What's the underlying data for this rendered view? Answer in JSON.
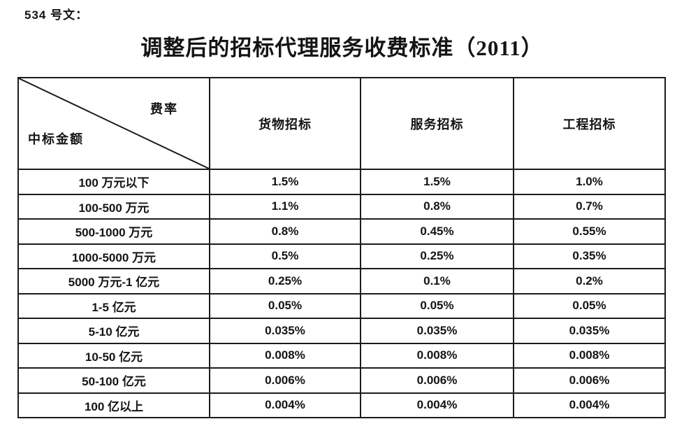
{
  "doc": {
    "ref_label": "534 号文：",
    "title": "调整后的招标代理服务收费标准（2011）"
  },
  "table": {
    "corner": {
      "top_right": "费率",
      "bottom_left": "中标金额"
    },
    "columns": [
      "货物招标",
      "服务招标",
      "工程招标"
    ],
    "rows": [
      {
        "label": "100 万元以下",
        "values": [
          "1.5%",
          "1.5%",
          "1.0%"
        ]
      },
      {
        "label": "100-500 万元",
        "values": [
          "1.1%",
          "0.8%",
          "0.7%"
        ]
      },
      {
        "label": "500-1000 万元",
        "values": [
          "0.8%",
          "0.45%",
          "0.55%"
        ]
      },
      {
        "label": "1000-5000 万元",
        "values": [
          "0.5%",
          "0.25%",
          "0.35%"
        ]
      },
      {
        "label": "5000 万元-1 亿元",
        "values": [
          "0.25%",
          "0.1%",
          "0.2%"
        ]
      },
      {
        "label": "1-5 亿元",
        "values": [
          "0.05%",
          "0.05%",
          "0.05%"
        ]
      },
      {
        "label": "5-10 亿元",
        "values": [
          "0.035%",
          "0.035%",
          "0.035%"
        ]
      },
      {
        "label": "10-50 亿元",
        "values": [
          "0.008%",
          "0.008%",
          "0.008%"
        ]
      },
      {
        "label": "50-100 亿元",
        "values": [
          "0.006%",
          "0.006%",
          "0.006%"
        ]
      },
      {
        "label": "100 亿以上",
        "values": [
          "0.004%",
          "0.004%",
          "0.004%"
        ]
      }
    ]
  },
  "colors": {
    "text": "#141414",
    "border": "#1c1c1c",
    "background": "#ffffff"
  }
}
